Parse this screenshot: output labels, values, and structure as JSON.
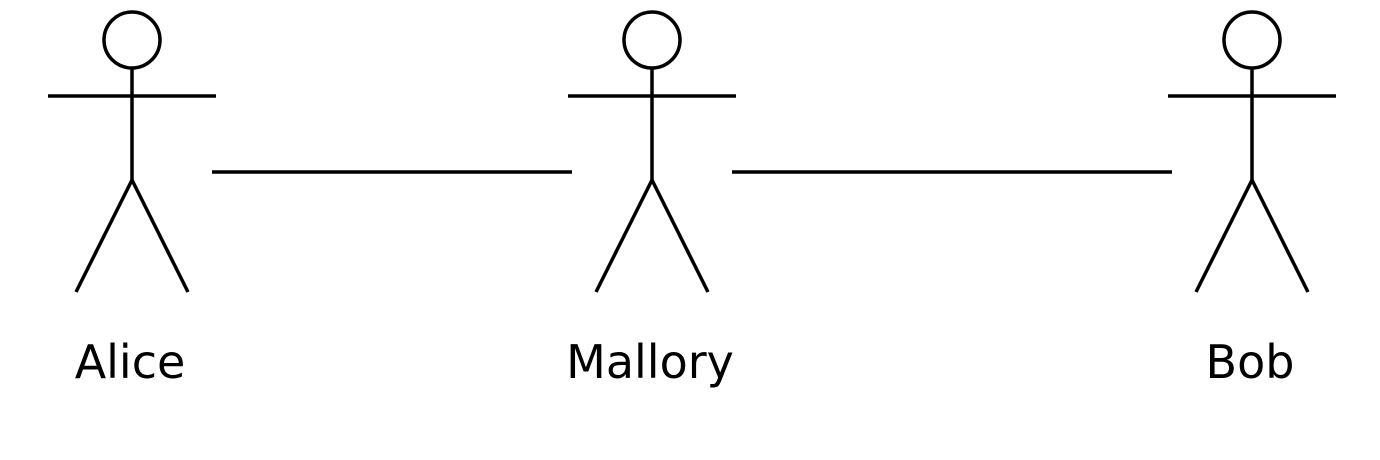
{
  "diagram": {
    "stroke_color": "#000000",
    "background_color": "#ffffff",
    "actors": [
      {
        "id": "alice",
        "label": "Alice",
        "icon": "stick-figure-icon"
      },
      {
        "id": "mallory",
        "label": "Mallory",
        "icon": "stick-figure-icon"
      },
      {
        "id": "bob",
        "label": "Bob",
        "icon": "stick-figure-icon"
      }
    ],
    "connections": [
      {
        "from": "alice",
        "to": "mallory"
      },
      {
        "from": "mallory",
        "to": "bob"
      }
    ]
  }
}
